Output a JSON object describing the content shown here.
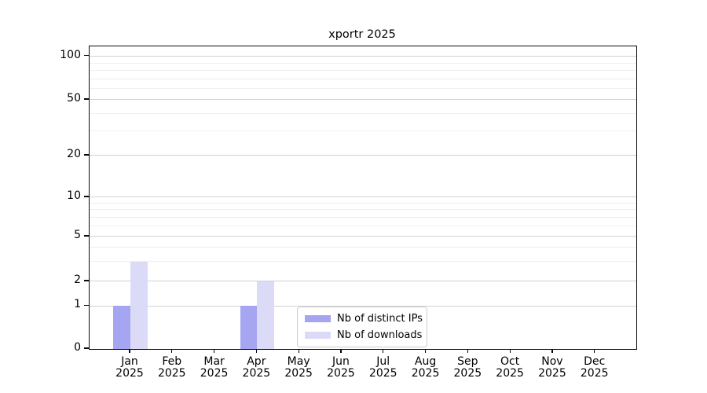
{
  "figure": {
    "title": "xportr 2025"
  },
  "chart_data": {
    "type": "bar",
    "title": "xportr 2025",
    "categories": [
      "Jan 2025",
      "Feb 2025",
      "Mar 2025",
      "Apr 2025",
      "May 2025",
      "Jun 2025",
      "Jul 2025",
      "Aug 2025",
      "Sep 2025",
      "Oct 2025",
      "Nov 2025",
      "Dec 2025"
    ],
    "series": [
      {
        "name": "Nb of distinct IPs",
        "color": "#a5a5f1",
        "values": [
          1,
          0,
          0,
          1,
          0,
          0,
          0,
          0,
          0,
          0,
          0,
          0
        ]
      },
      {
        "name": "Nb of downloads",
        "color": "#dbdbf8",
        "values": [
          3,
          0,
          0,
          2,
          0,
          0,
          0,
          0,
          0,
          0,
          0,
          0
        ]
      }
    ],
    "xlabel": "",
    "ylabel": "",
    "y_axis": {
      "scale": "log above 1, linear 0-1",
      "major_ticks": [
        0,
        1,
        2,
        5,
        10,
        20,
        50,
        100
      ],
      "minor_gridlines": [
        3,
        4,
        6,
        7,
        8,
        9,
        30,
        40,
        60,
        70,
        80,
        90
      ]
    },
    "grid": "horizontal major and minor gridlines",
    "legend": {
      "position": "lower center",
      "entries": [
        "Nb of distinct IPs",
        "Nb of downloads"
      ]
    }
  }
}
